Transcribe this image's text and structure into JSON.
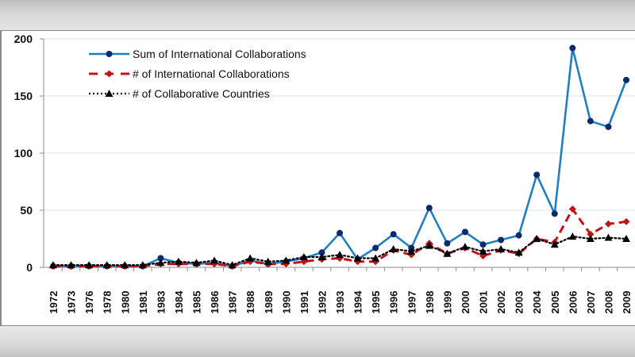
{
  "chart_data": {
    "type": "line",
    "title": "",
    "xlabel": "",
    "ylabel": "",
    "ylim": [
      0,
      200
    ],
    "yticks": [
      0,
      50,
      100,
      150,
      200
    ],
    "grid": true,
    "legend_position": "top-left inside",
    "categories": [
      "1972",
      "1973",
      "1976",
      "1978",
      "1980",
      "1981",
      "1983",
      "1984",
      "1985",
      "1986",
      "1987",
      "1988",
      "1989",
      "1990",
      "1991",
      "1992",
      "1993",
      "1994",
      "1995",
      "1996",
      "1997",
      "1998",
      "1999",
      "2000",
      "2001",
      "2002",
      "2003",
      "2004",
      "2005",
      "2006",
      "2007",
      "2008",
      "2009"
    ],
    "series": [
      {
        "name": "Sum of International Collaborations",
        "color": "#1f7fc4",
        "marker": "circle",
        "marker_color": "#0d2a6e",
        "line_style": "solid",
        "values": [
          1,
          1,
          1,
          1,
          1,
          1,
          8,
          4,
          3,
          4,
          1,
          6,
          3,
          5,
          8,
          13,
          30,
          7,
          17,
          29,
          17,
          52,
          21,
          31,
          20,
          24,
          28,
          81,
          47,
          192,
          128,
          123,
          164
        ]
      },
      {
        "name": "# of International Collaborations",
        "color": "#c0141a",
        "marker": "diamond",
        "marker_color": "#c0141a",
        "line_style": "dashed",
        "values": [
          1,
          1,
          1,
          1,
          1,
          1,
          3,
          3,
          3,
          3,
          1,
          5,
          3,
          3,
          5,
          7,
          8,
          5,
          5,
          15,
          11,
          21,
          12,
          17,
          10,
          15,
          12,
          25,
          22,
          51,
          29,
          38,
          40
        ]
      },
      {
        "name": "# of Collaborative Countries",
        "color": "#000000",
        "marker": "triangle",
        "marker_color": "#000000",
        "line_style": "dotted",
        "values": [
          2,
          2,
          2,
          2,
          2,
          2,
          4,
          5,
          4,
          6,
          2,
          8,
          5,
          6,
          9,
          9,
          11,
          8,
          8,
          16,
          14,
          19,
          12,
          18,
          14,
          16,
          13,
          25,
          20,
          27,
          25,
          26,
          25
        ]
      }
    ]
  }
}
